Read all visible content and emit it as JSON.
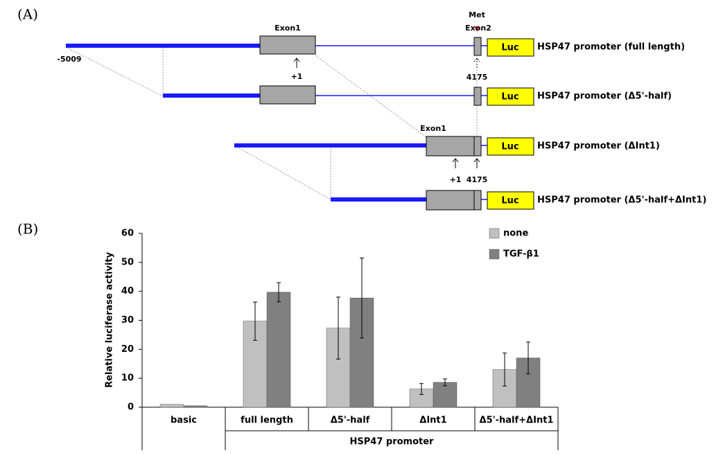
{
  "panels": [
    "(A)",
    "(B)"
  ],
  "diagram": {
    "exon1": "Exon1",
    "met": "Met",
    "exon2": "Exon2",
    "start": "-5009",
    "tss": "+1",
    "end": "4175",
    "exon1_fused": "Exon1",
    "tss_fused": "+1",
    "end_fused": "4175",
    "constructs": [
      {
        "luc": "Luc",
        "label": "HSP47 promoter (full length)"
      },
      {
        "luc": "Luc",
        "label": "HSP47 promoter (Δ5'-half)"
      },
      {
        "luc": "Luc",
        "label": "HSP47 promoter (ΔInt1)"
      },
      {
        "luc": "Luc",
        "label": "HSP47 promoter (Δ5'-half+ΔInt1)"
      }
    ]
  },
  "chart_data": {
    "type": "bar",
    "y_label": "Relative luciferase activity",
    "categories": [
      "basic",
      "full length",
      "Δ5'-half",
      "ΔInt1",
      "Δ5'-half+ΔInt1"
    ],
    "group_label": "HSP47 promoter",
    "series": [
      {
        "name": "none",
        "color": "#c0c0c0",
        "values": [
          1,
          29.7,
          27.3,
          6.3,
          13
        ],
        "errors": [
          null,
          6.6,
          10.7,
          1.9,
          5.7
        ]
      },
      {
        "name": "TGF-β1",
        "color": "#808080",
        "values": [
          0.5,
          39.7,
          37.7,
          8.6,
          17
        ],
        "errors": [
          null,
          3.3,
          13.8,
          1.2,
          5.5
        ]
      }
    ],
    "ylim": [
      0,
      60
    ],
    "yticks": [
      0,
      10,
      20,
      30,
      40,
      50,
      60
    ],
    "grid": false
  }
}
